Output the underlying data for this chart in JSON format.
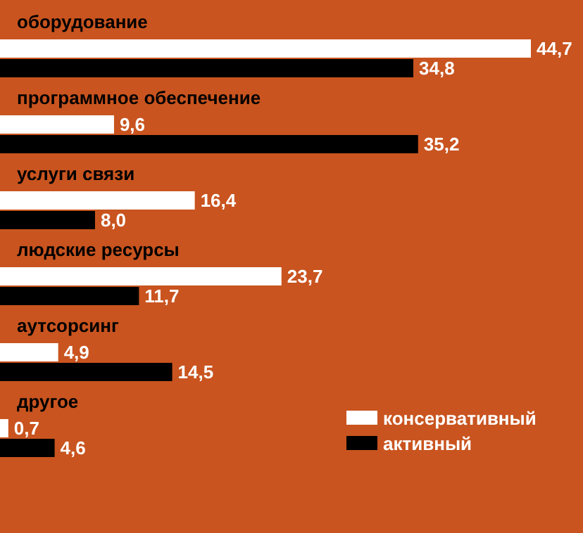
{
  "chart_data": {
    "type": "bar",
    "orientation": "horizontal",
    "categories": [
      "оборудование",
      "программное обеспечение",
      "услуги связи",
      "людские ресурсы",
      "аутсорсинг",
      "другое"
    ],
    "series": [
      {
        "name": "консервативный",
        "color": "#ffffff",
        "values": [
          44.7,
          9.6,
          16.4,
          23.7,
          4.9,
          0.7
        ],
        "value_labels": [
          "44,7",
          "9,6",
          "16,4",
          "23,7",
          "4,9",
          "0,7"
        ]
      },
      {
        "name": "активный",
        "color": "#000000",
        "values": [
          34.8,
          35.2,
          8.0,
          11.7,
          14.5,
          4.6
        ],
        "value_labels": [
          "34,8",
          "35,2",
          "8,0",
          "11,7",
          "14,5",
          "4,6"
        ]
      }
    ],
    "legend": "bottom right"
  }
}
